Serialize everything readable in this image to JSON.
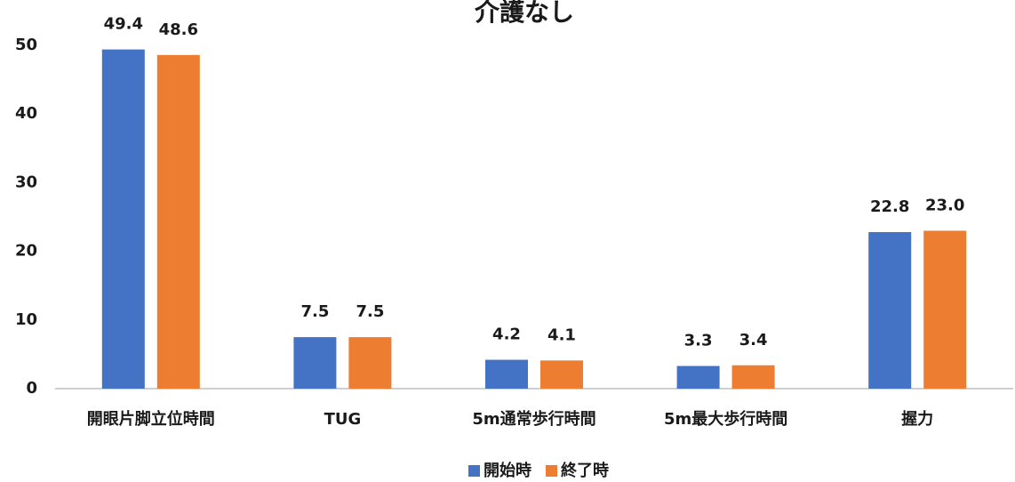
{
  "chart_data": {
    "type": "bar",
    "title": "介護なし",
    "categories": [
      "開眼片脚立位時間",
      "TUG",
      "5m通常歩行時間",
      "5m最大歩行時間",
      "握力"
    ],
    "series": [
      {
        "name": "開始時",
        "color": "#4472c4",
        "values": [
          49.4,
          7.5,
          4.2,
          3.3,
          22.8
        ],
        "value_labels": [
          "49.4",
          "7.5",
          "4.2",
          "3.3",
          "22.8"
        ]
      },
      {
        "name": "終了時",
        "color": "#ed7d31",
        "values": [
          48.6,
          7.5,
          4.1,
          3.4,
          23.0
        ],
        "value_labels": [
          "48.6",
          "7.5",
          "4.1",
          "3.4",
          "23.0"
        ]
      }
    ],
    "ylim": [
      0,
      50
    ],
    "yticks": [
      0,
      10,
      20,
      30,
      40,
      50
    ],
    "grid": false,
    "legend": "bottom"
  }
}
